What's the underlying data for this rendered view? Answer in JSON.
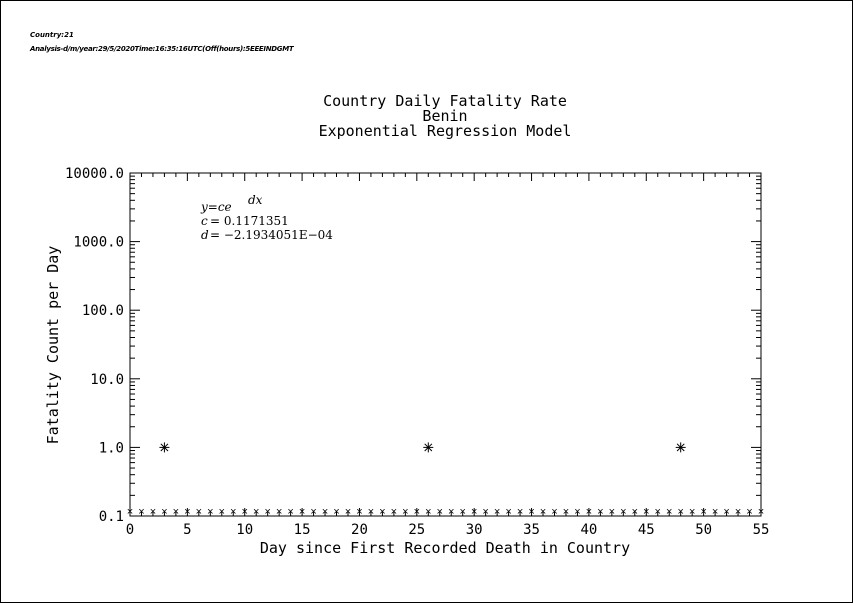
{
  "meta": {
    "line1": "Country:21",
    "line2": "Analysis-d/m/year:29/5/2020Time:16:35:16UTC(Off(hours):5EEEINDGMT"
  },
  "chart_data": {
    "type": "scatter",
    "title": [
      "Country Daily Fatality Rate",
      "Benin",
      "Exponential Regression Model"
    ],
    "xlabel": "Day since First Recorded Death in Country",
    "ylabel": "Fatality Count per Day",
    "xlim": [
      0,
      55
    ],
    "ylim": [
      0.1,
      10000
    ],
    "yscale": "log",
    "x_ticks": [
      0,
      5,
      10,
      15,
      20,
      25,
      30,
      35,
      40,
      45,
      50,
      55
    ],
    "y_ticks": [
      0.1,
      1,
      10,
      100,
      1000,
      10000
    ],
    "y_tick_labels": [
      "0.1",
      "1.0",
      "10.0",
      "100.0",
      "1000.0",
      "10000.0"
    ],
    "grid": false,
    "series": [
      {
        "marker": "asterisk",
        "x": [
          3,
          26,
          48
        ],
        "y": [
          1,
          1,
          1
        ]
      },
      {
        "marker": "small-x",
        "x": [
          0,
          1,
          2,
          3,
          4,
          5,
          6,
          7,
          8,
          9,
          10,
          11,
          12,
          13,
          14,
          15,
          16,
          17,
          18,
          19,
          20,
          21,
          22,
          23,
          24,
          25,
          26,
          27,
          28,
          29,
          30,
          31,
          32,
          33,
          34,
          35,
          36,
          37,
          38,
          39,
          40,
          41,
          42,
          43,
          44,
          45,
          46,
          47,
          48,
          49,
          50,
          51,
          52,
          53,
          54,
          55
        ],
        "y": [
          0.117,
          0.117,
          0.117,
          0.117,
          0.117,
          0.117,
          0.117,
          0.117,
          0.117,
          0.117,
          0.117,
          0.117,
          0.117,
          0.117,
          0.117,
          0.117,
          0.117,
          0.117,
          0.117,
          0.117,
          0.117,
          0.117,
          0.117,
          0.117,
          0.117,
          0.117,
          0.117,
          0.117,
          0.117,
          0.117,
          0.117,
          0.117,
          0.117,
          0.117,
          0.117,
          0.117,
          0.117,
          0.117,
          0.117,
          0.117,
          0.117,
          0.117,
          0.117,
          0.117,
          0.117,
          0.117,
          0.117,
          0.117,
          0.117,
          0.117,
          0.117,
          0.117,
          0.117,
          0.117,
          0.117,
          0.117
        ]
      }
    ],
    "annotation": {
      "formula": "y=ce",
      "formula_exp": "dx",
      "c_label": "c",
      "c_value": "= 0.1171351",
      "d_label": "d",
      "d_value": "= −2.1934051E−04"
    }
  }
}
